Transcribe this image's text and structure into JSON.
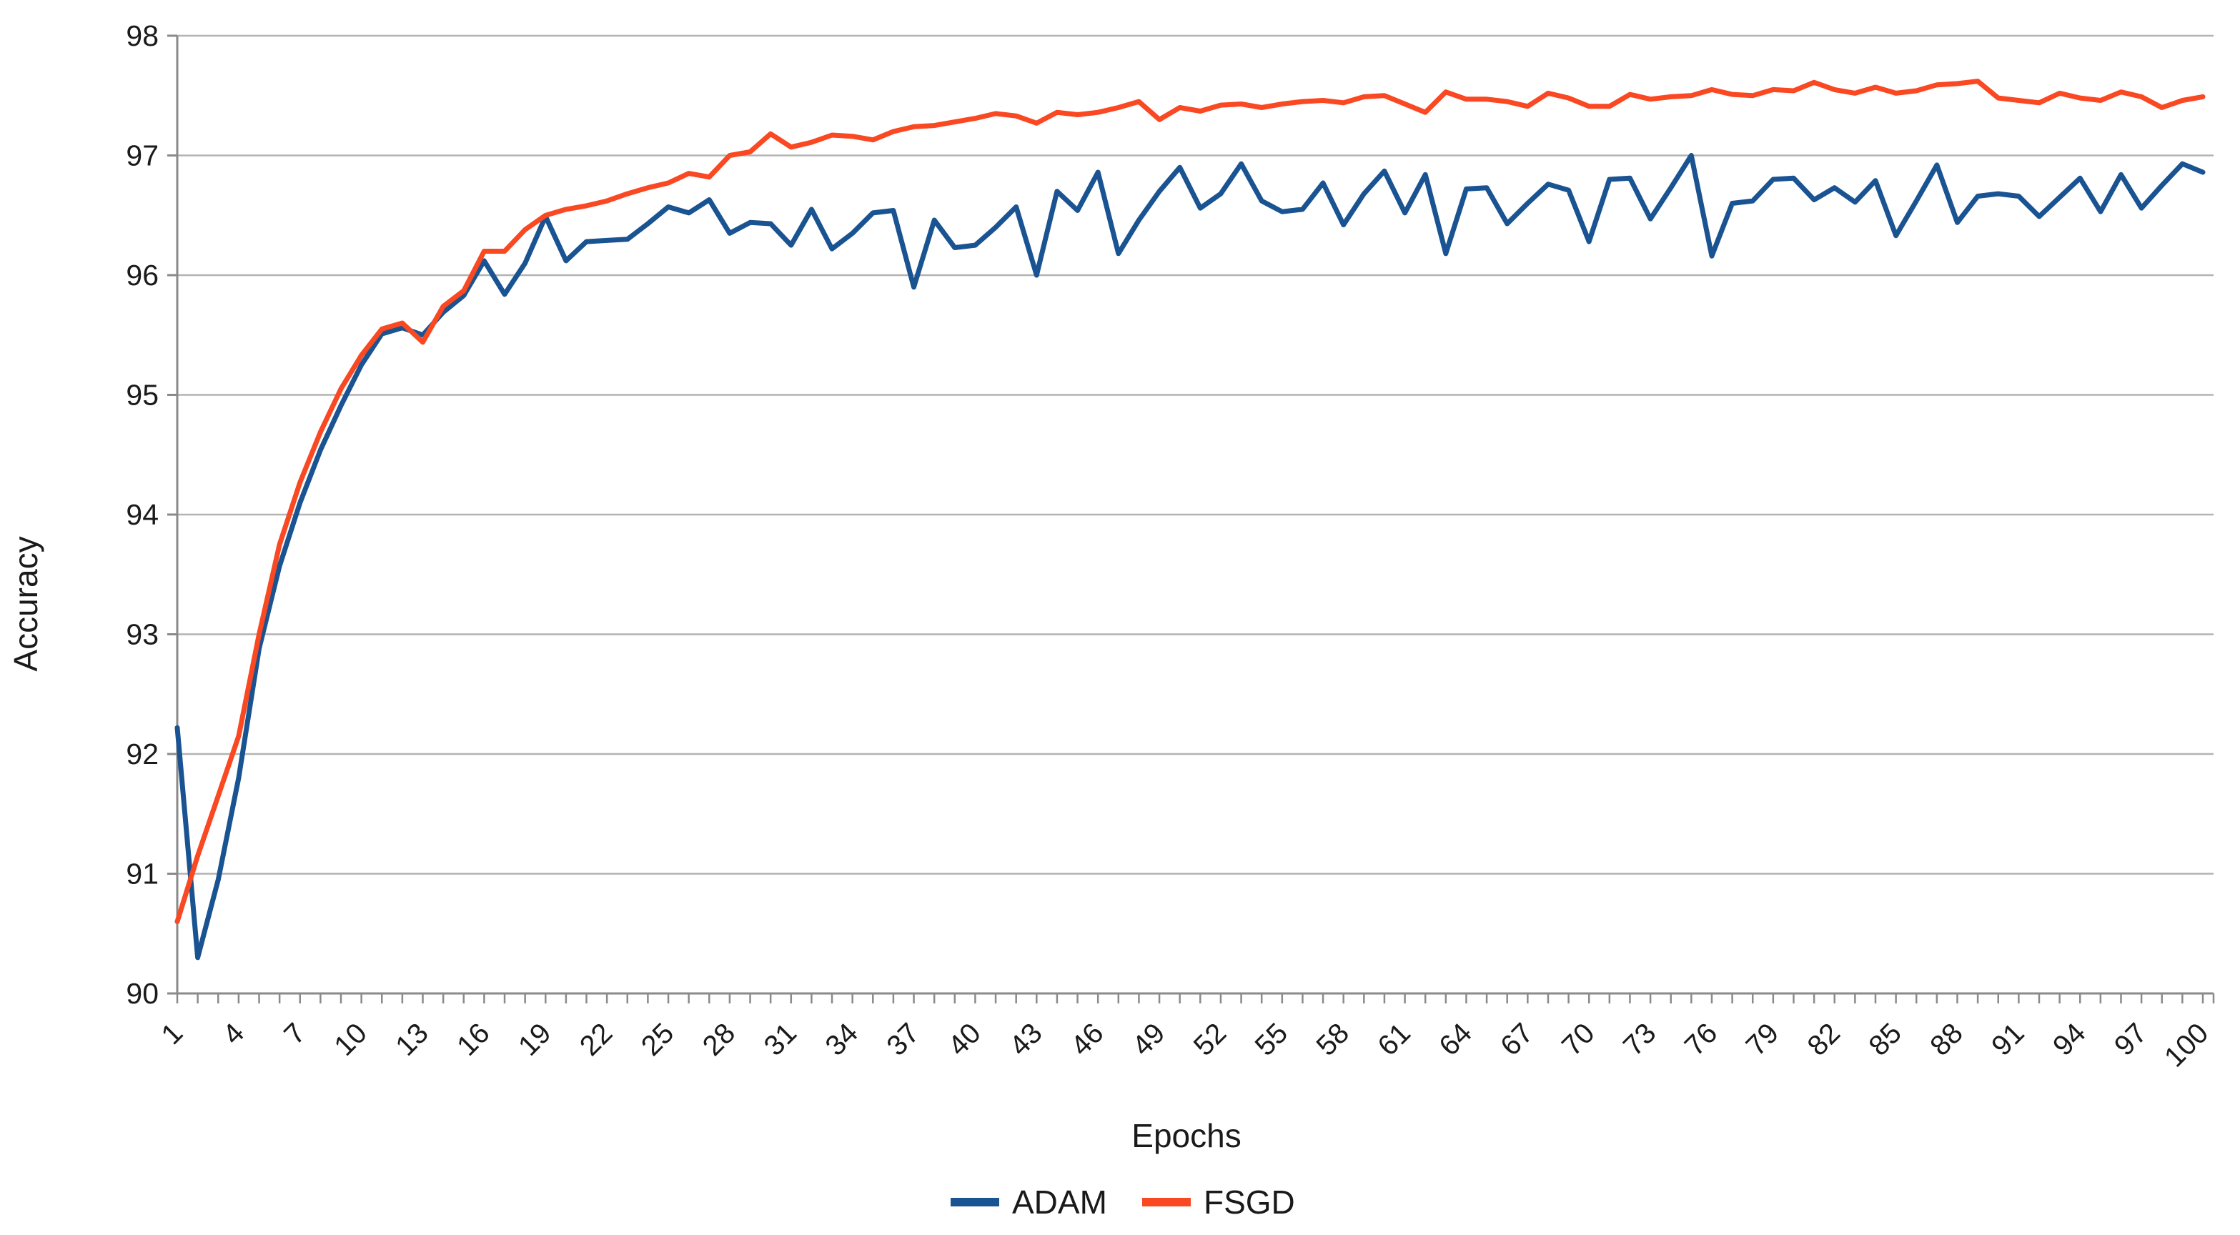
{
  "y_axis": {
    "label": "Accuracy",
    "ticks": [
      "98",
      "97",
      "96",
      "95",
      "94",
      "93",
      "92",
      "91",
      "90"
    ],
    "min": 90,
    "max": 98
  },
  "x_axis": {
    "label": "Epochs",
    "tick_labels": [
      "1",
      "4",
      "7",
      "10",
      "13",
      "16",
      "19",
      "22",
      "25",
      "28",
      "31",
      "34",
      "37",
      "40",
      "43",
      "46",
      "49",
      "52",
      "55",
      "58",
      "61",
      "64",
      "67",
      "70",
      "73",
      "76",
      "79",
      "82",
      "85",
      "88",
      "91",
      "94",
      "97",
      "100"
    ],
    "label_step": 3,
    "n_points": 100
  },
  "legend": {
    "position": "bottom-center",
    "items": [
      {
        "label": "ADAM",
        "color": "#1a5391"
      },
      {
        "label": "FSGD",
        "color": "#f94822"
      }
    ]
  },
  "style": {
    "grid_color": "#b3b3b3",
    "axis_color": "#8a8a8a",
    "text_color": "#1a1a1a",
    "line_width": 7
  },
  "chart_data": {
    "type": "line",
    "title": "",
    "xlabel": "Epochs",
    "ylabel": "Accuracy",
    "ylim": [
      90,
      98
    ],
    "grid": true,
    "legend_position": "bottom",
    "x": [
      1,
      2,
      3,
      4,
      5,
      6,
      7,
      8,
      9,
      10,
      11,
      12,
      13,
      14,
      15,
      16,
      17,
      18,
      19,
      20,
      21,
      22,
      23,
      24,
      25,
      26,
      27,
      28,
      29,
      30,
      31,
      32,
      33,
      34,
      35,
      36,
      37,
      38,
      39,
      40,
      41,
      42,
      43,
      44,
      45,
      46,
      47,
      48,
      49,
      50,
      51,
      52,
      53,
      54,
      55,
      56,
      57,
      58,
      59,
      60,
      61,
      62,
      63,
      64,
      65,
      66,
      67,
      68,
      69,
      70,
      71,
      72,
      73,
      74,
      75,
      76,
      77,
      78,
      79,
      80,
      81,
      82,
      83,
      84,
      85,
      86,
      87,
      88,
      89,
      90,
      91,
      92,
      93,
      94,
      95,
      96,
      97,
      98,
      99,
      100
    ],
    "series": [
      {
        "name": "ADAM",
        "color": "#1a5391",
        "values": [
          92.22,
          90.3,
          90.95,
          91.8,
          92.88,
          93.57,
          94.1,
          94.54,
          94.91,
          95.25,
          95.51,
          95.56,
          95.5,
          95.69,
          95.83,
          96.12,
          95.84,
          96.1,
          96.49,
          96.12,
          96.28,
          96.29,
          96.3,
          96.43,
          96.57,
          96.52,
          96.63,
          96.35,
          96.44,
          96.43,
          96.25,
          96.55,
          96.22,
          96.35,
          96.52,
          96.54,
          95.9,
          96.46,
          96.23,
          96.25,
          96.4,
          96.57,
          96.0,
          96.7,
          96.54,
          96.86,
          96.18,
          96.46,
          96.7,
          96.9,
          96.56,
          96.68,
          96.93,
          96.62,
          96.53,
          96.55,
          96.77,
          96.42,
          96.68,
          96.87,
          96.52,
          96.84,
          96.18,
          96.72,
          96.73,
          96.43,
          96.6,
          96.76,
          96.71,
          96.28,
          96.8,
          96.81,
          96.47,
          96.73,
          97.0,
          96.16,
          96.6,
          96.62,
          96.8,
          96.81,
          96.63,
          96.73,
          96.61,
          96.79,
          96.33,
          96.62,
          96.92,
          96.44,
          96.66,
          96.68,
          96.66,
          96.49,
          96.65,
          96.81,
          96.53,
          96.84,
          96.56,
          96.75,
          96.93,
          96.86
        ]
      },
      {
        "name": "FSGD",
        "color": "#f94822",
        "values": [
          90.6,
          91.15,
          91.65,
          92.15,
          93.0,
          93.75,
          94.27,
          94.69,
          95.05,
          95.33,
          95.55,
          95.6,
          95.44,
          95.74,
          95.87,
          96.2,
          96.2,
          96.38,
          96.5,
          96.55,
          96.58,
          96.62,
          96.68,
          96.73,
          96.77,
          96.85,
          96.82,
          97.0,
          97.03,
          97.18,
          97.07,
          97.11,
          97.17,
          97.16,
          97.13,
          97.2,
          97.24,
          97.25,
          97.28,
          97.31,
          97.35,
          97.33,
          97.27,
          97.36,
          97.34,
          97.36,
          97.4,
          97.45,
          97.3,
          97.4,
          97.37,
          97.42,
          97.43,
          97.4,
          97.43,
          97.45,
          97.46,
          97.44,
          97.49,
          97.5,
          97.43,
          97.36,
          97.53,
          97.47,
          97.47,
          97.45,
          97.41,
          97.52,
          97.48,
          97.41,
          97.41,
          97.51,
          97.47,
          97.49,
          97.5,
          97.55,
          97.51,
          97.5,
          97.55,
          97.54,
          97.61,
          97.55,
          97.52,
          97.57,
          97.52,
          97.54,
          97.59,
          97.6,
          97.62,
          97.48,
          97.46,
          97.44,
          97.52,
          97.48,
          97.46,
          97.53,
          97.49,
          97.4,
          97.46,
          97.49
        ]
      }
    ]
  }
}
